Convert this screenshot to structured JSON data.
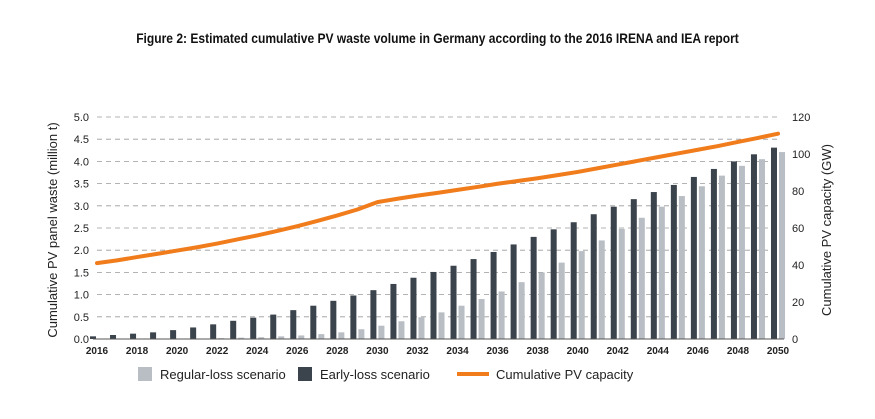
{
  "chart_data": {
    "type": "bar",
    "title": "Figure 2: Estimated cumulative PV waste volume in Germany according to the 2016 IRENA and IEA report",
    "x": [
      2016,
      2017,
      2018,
      2019,
      2020,
      2021,
      2022,
      2023,
      2024,
      2025,
      2026,
      2027,
      2028,
      2029,
      2030,
      2031,
      2032,
      2033,
      2034,
      2035,
      2036,
      2037,
      2038,
      2039,
      2040,
      2041,
      2042,
      2043,
      2044,
      2045,
      2046,
      2047,
      2048,
      2049,
      2050
    ],
    "x_tick_labels": [
      "2016",
      "2018",
      "2020",
      "2022",
      "2024",
      "2026",
      "2028",
      "2030",
      "2032",
      "2034",
      "2036",
      "2038",
      "2040",
      "2042",
      "2044",
      "2046",
      "2048",
      "2050"
    ],
    "ylabel": "Cumulative PV panel waste (million t)",
    "y2label": "Cumulative PV capacity (GW)",
    "ylim": [
      0,
      5
    ],
    "y_ticks": [
      "0.0",
      "0.5",
      "1.0",
      "1.5",
      "2.0",
      "2.5",
      "3.0",
      "3.5",
      "4.0",
      "4.5",
      "5.0"
    ],
    "y2lim": [
      0,
      120
    ],
    "y2_ticks": [
      "0",
      "20",
      "40",
      "60",
      "80",
      "100",
      "120"
    ],
    "grid": "horizontal dashed",
    "legend_position": "bottom",
    "series": [
      {
        "name": "Regular-loss scenario",
        "kind": "bar",
        "axis": "left",
        "color": "#b8bec4",
        "values": [
          0.01,
          0.01,
          0.01,
          0.01,
          0.01,
          0.01,
          0.02,
          0.03,
          0.04,
          0.06,
          0.08,
          0.11,
          0.15,
          0.22,
          0.3,
          0.4,
          0.49,
          0.6,
          0.75,
          0.9,
          1.07,
          1.28,
          1.5,
          1.72,
          1.98,
          2.22,
          2.48,
          2.73,
          2.98,
          3.22,
          3.44,
          3.68,
          3.9,
          4.05,
          4.21
        ]
      },
      {
        "name": "Early-loss scenario",
        "kind": "bar",
        "axis": "left",
        "color": "#3b444d",
        "values": [
          0.06,
          0.09,
          0.12,
          0.15,
          0.2,
          0.26,
          0.33,
          0.41,
          0.48,
          0.55,
          0.65,
          0.75,
          0.86,
          0.98,
          1.1,
          1.24,
          1.38,
          1.51,
          1.65,
          1.8,
          1.96,
          2.13,
          2.3,
          2.47,
          2.63,
          2.81,
          2.98,
          3.15,
          3.31,
          3.47,
          3.65,
          3.83,
          4.0,
          4.16,
          4.31
        ]
      },
      {
        "name": "Cumulative PV capacity",
        "kind": "line",
        "axis": "right",
        "color": "#f07c1c",
        "values": [
          41,
          42.5,
          44.3,
          46,
          47.8,
          49.6,
          51.6,
          53.8,
          56,
          58.4,
          61,
          63.8,
          66.8,
          70,
          74,
          75.8,
          77.5,
          79,
          80.6,
          82.2,
          83.9,
          85.4,
          86.9,
          88.6,
          90.3,
          92.3,
          94.3,
          96.3,
          98.3,
          100.3,
          102.3,
          104.3,
          106.5,
          108.7,
          111
        ]
      }
    ]
  }
}
